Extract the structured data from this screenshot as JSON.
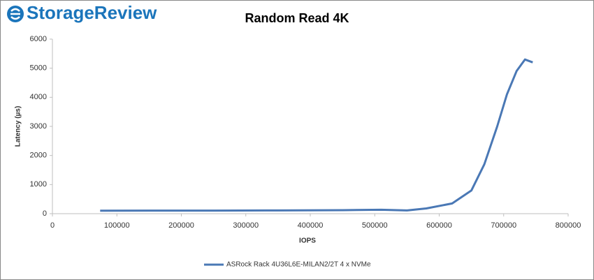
{
  "logo": "StorageReview",
  "chart_data": {
    "type": "line",
    "title": "Random Read 4K",
    "x_label": "IOPS",
    "y_label": "Latency (µs)",
    "xlim": [
      0,
      800000
    ],
    "xticks": [
      0,
      100000,
      200000,
      300000,
      400000,
      500000,
      600000,
      700000,
      800000
    ],
    "ylim": [
      0,
      6000
    ],
    "yticks": [
      0,
      1000,
      2000,
      3000,
      4000,
      5000,
      6000
    ],
    "grid": false,
    "legend": "bottom",
    "series": [
      {
        "name": "ASRock Rack 4U36L6E-MILAN2/2T 4 x NVMe",
        "color": "#4a78b5",
        "x": [
          74000,
          150000,
          250000,
          350000,
          450000,
          510000,
          550000,
          580000,
          620000,
          650000,
          670000,
          690000,
          705000,
          720000,
          733000,
          745000
        ],
        "values": [
          100,
          105,
          105,
          110,
          120,
          135,
          110,
          180,
          350,
          800,
          1700,
          3000,
          4100,
          4900,
          5300,
          5200
        ]
      }
    ]
  }
}
